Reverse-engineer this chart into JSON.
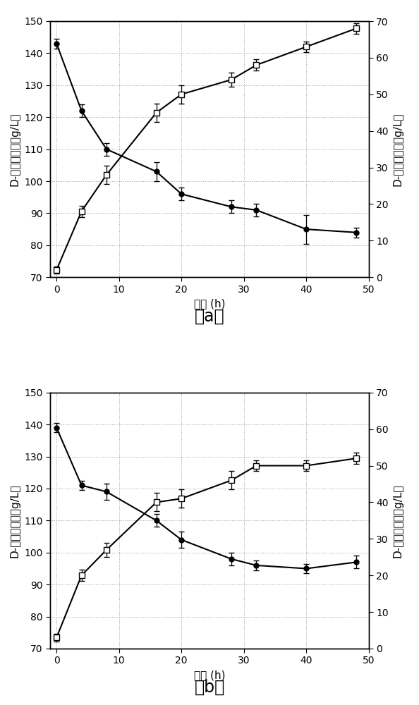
{
  "panel_a": {
    "x": [
      0,
      4,
      8,
      16,
      20,
      28,
      32,
      40,
      48
    ],
    "left_y": [
      143,
      122,
      110,
      103,
      96,
      92,
      91,
      85,
      84
    ],
    "left_err": [
      1.5,
      2.0,
      2.0,
      3.0,
      2.0,
      2.0,
      2.0,
      4.5,
      1.5
    ],
    "right_y": [
      2,
      18,
      28,
      45,
      50,
      54,
      58,
      63,
      68
    ],
    "right_err": [
      1.0,
      1.5,
      2.5,
      2.5,
      2.5,
      2.0,
      1.5,
      1.5,
      1.5
    ]
  },
  "panel_b": {
    "x": [
      0,
      4,
      8,
      16,
      20,
      28,
      32,
      40,
      48
    ],
    "left_y": [
      139,
      121,
      119,
      110,
      104,
      98,
      96,
      95,
      97
    ],
    "left_err": [
      1.5,
      1.5,
      2.5,
      2.0,
      2.5,
      2.0,
      1.5,
      1.5,
      2.0
    ],
    "right_y": [
      3,
      20,
      27,
      40,
      41,
      46,
      50,
      50,
      52
    ],
    "right_err": [
      1.0,
      1.5,
      2.0,
      2.5,
      2.5,
      2.5,
      1.5,
      1.5,
      1.5
    ]
  },
  "ylim_left": [
    70,
    150
  ],
  "ylim_right": [
    0,
    70
  ],
  "xlim": [
    -1,
    50
  ],
  "xticks": [
    0,
    10,
    20,
    30,
    40,
    50
  ],
  "yticks_left": [
    70,
    80,
    90,
    100,
    110,
    120,
    130,
    140,
    150
  ],
  "yticks_right": [
    0,
    10,
    20,
    30,
    40,
    50,
    60,
    70
  ],
  "xlabel": "时间 (h)",
  "ylabel_left": "D-半乳糖浓度（g/L）",
  "ylabel_right": "D-塔格糖浓度（g/L）",
  "label_a": "（a）",
  "label_b": "（b）",
  "bg_color": "#ffffff",
  "fontsize_label": 11,
  "fontsize_tick": 10,
  "fontsize_caption": 17
}
